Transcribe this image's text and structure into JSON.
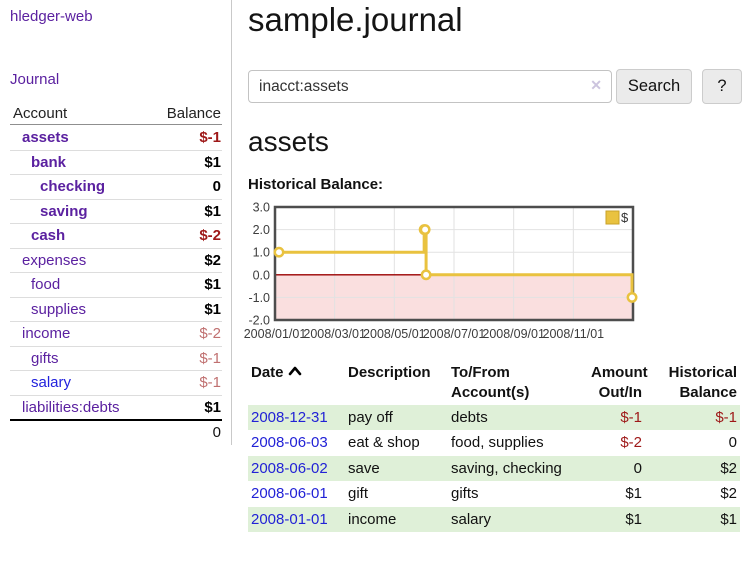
{
  "app": {
    "brand": "hledger-web",
    "nav": {
      "journal": "Journal"
    }
  },
  "sidebar": {
    "header": {
      "account": "Account",
      "balance": "Balance"
    },
    "accounts": [
      {
        "name": "assets",
        "balance": "$-1",
        "depth": 1,
        "emph": true,
        "bal_style": "neg-strong",
        "name_style": "purple"
      },
      {
        "name": "bank",
        "balance": "$1",
        "depth": 2,
        "emph": true,
        "bal_style": "pos",
        "name_style": "purple"
      },
      {
        "name": "checking",
        "balance": "0",
        "depth": 3,
        "emph": true,
        "bal_style": "pos",
        "name_style": "purple"
      },
      {
        "name": "saving",
        "balance": "$1",
        "depth": 3,
        "emph": true,
        "bal_style": "pos",
        "name_style": "purple"
      },
      {
        "name": "cash",
        "balance": "$-2",
        "depth": 2,
        "emph": true,
        "bal_style": "neg-strong",
        "name_style": "purple"
      },
      {
        "name": "expenses",
        "balance": "$2",
        "depth": 1,
        "emph": false,
        "bal_style": "pos",
        "name_style": "purple"
      },
      {
        "name": "food",
        "balance": "$1",
        "depth": 2,
        "emph": false,
        "bal_style": "pos",
        "name_style": "purple"
      },
      {
        "name": "supplies",
        "balance": "$1",
        "depth": 2,
        "emph": false,
        "bal_style": "pos",
        "name_style": "purple"
      },
      {
        "name": "income",
        "balance": "$-2",
        "depth": 1,
        "emph": false,
        "bal_style": "neg-muted",
        "name_style": "purple"
      },
      {
        "name": "gifts",
        "balance": "$-1",
        "depth": 2,
        "emph": false,
        "bal_style": "neg-muted",
        "name_style": "purple"
      },
      {
        "name": "salary",
        "balance": "$-1",
        "depth": 2,
        "emph": false,
        "bal_style": "neg-muted",
        "name_style": "blue"
      },
      {
        "name": "liabilities:debts",
        "balance": "$1",
        "depth": 1,
        "emph": false,
        "bal_style": "pos",
        "name_style": "purple"
      }
    ],
    "total": "0"
  },
  "main": {
    "title": "sample.journal",
    "search": {
      "value": "inacct:assets",
      "clear_icon": "✕",
      "button_label": "Search",
      "help_label": "?"
    },
    "account_heading": "assets",
    "section_label": "Historical Balance:"
  },
  "chart_data": {
    "type": "line",
    "title": "Historical Balance",
    "series": [
      {
        "name": "$",
        "color": "#E9C23F",
        "steps": true,
        "points": [
          [
            "2008-01-01",
            1
          ],
          [
            "2008-06-01",
            2
          ],
          [
            "2008-06-02",
            2
          ],
          [
            "2008-06-03",
            0
          ],
          [
            "2008-12-31",
            -1
          ]
        ]
      }
    ],
    "xlim": [
      "2008-01-01",
      "2009-01-01"
    ],
    "ylim": [
      -2,
      3
    ],
    "yticks": [
      "3.0",
      "2.0",
      "1.0",
      "0.0",
      "-1.0",
      "-2.0"
    ],
    "xticks": [
      "2008/01/01",
      "2008/03/01",
      "2008/05/01",
      "2008/07/01",
      "2008/09/01",
      "2008/11/01"
    ],
    "legend": [
      {
        "label": "$",
        "color": "#E9C23F"
      }
    ],
    "legend_position": "top-right",
    "grid": true,
    "zero_line_color": "#9b0000",
    "negative_region_color": "#f5bfbf",
    "border_color": "#4d4d4d"
  },
  "register": {
    "headers": {
      "date": "Date",
      "description": "Description",
      "tofrom": "To/From Account(s)",
      "amount": "Amount Out/In",
      "balance": "Historical Balance"
    },
    "rows": [
      {
        "date": "2008-12-31",
        "description": "pay off",
        "accounts": "debts",
        "amount": "$-1",
        "balance": "$-1",
        "amount_neg": true,
        "balance_neg": true
      },
      {
        "date": "2008-06-03",
        "description": "eat & shop",
        "accounts": "food, supplies",
        "amount": "$-2",
        "balance": "0",
        "amount_neg": true,
        "balance_neg": false
      },
      {
        "date": "2008-06-02",
        "description": "save",
        "accounts": "saving, checking",
        "amount": "0",
        "balance": "$2",
        "amount_neg": false,
        "balance_neg": false
      },
      {
        "date": "2008-06-01",
        "description": "gift",
        "accounts": "gifts",
        "amount": "$1",
        "balance": "$2",
        "amount_neg": false,
        "balance_neg": false
      },
      {
        "date": "2008-01-01",
        "description": "income",
        "accounts": "salary",
        "amount": "$1",
        "balance": "$1",
        "amount_neg": false,
        "balance_neg": false
      }
    ]
  },
  "colors": {
    "link_purple": "#5b21a0",
    "link_blue": "#2222d6",
    "neg_strong": "#9e1818",
    "neg_muted": "#c07070",
    "row_green": "#dff0d8",
    "chart_line": "#E9C23F"
  }
}
